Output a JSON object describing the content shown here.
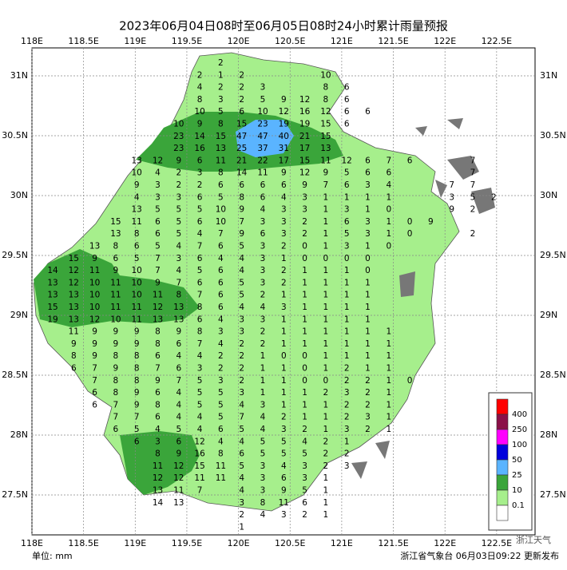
{
  "title": "2023年06月04日08时至06月05日08时24小时累计雨量预报",
  "lon_ticks": [
    {
      "value": 118,
      "label": "118E"
    },
    {
      "value": 118.5,
      "label": "118.5E"
    },
    {
      "value": 119,
      "label": "119E"
    },
    {
      "value": 119.5,
      "label": "119.5E"
    },
    {
      "value": 120,
      "label": "120E"
    },
    {
      "value": 120.5,
      "label": "120.5E"
    },
    {
      "value": 121,
      "label": "121E"
    },
    {
      "value": 121.5,
      "label": "121.5E"
    },
    {
      "value": 122,
      "label": "122E"
    },
    {
      "value": 122.5,
      "label": "122.5E"
    }
  ],
  "lat_ticks": [
    {
      "value": 31,
      "label": "31N"
    },
    {
      "value": 30.5,
      "label": "30.5N"
    },
    {
      "value": 30,
      "label": "30N"
    },
    {
      "value": 29.5,
      "label": "29.5N"
    },
    {
      "value": 29,
      "label": "29N"
    },
    {
      "value": 28.5,
      "label": "28.5N"
    },
    {
      "value": 28,
      "label": "28N"
    },
    {
      "value": 27.5,
      "label": "27.5N"
    }
  ],
  "stations": [
    [
      null,
      null,
      null,
      null,
      null,
      null,
      null,
      null,
      2
    ],
    [
      null,
      null,
      null,
      null,
      null,
      null,
      null,
      2,
      1,
      2,
      null,
      null,
      null,
      10
    ],
    [
      null,
      null,
      null,
      null,
      null,
      null,
      null,
      4,
      2,
      2,
      3,
      null,
      null,
      8,
      6
    ],
    [
      null,
      null,
      null,
      null,
      null,
      null,
      null,
      8,
      3,
      2,
      5,
      9,
      12,
      8,
      6
    ],
    [
      null,
      null,
      null,
      null,
      null,
      null,
      null,
      10,
      5,
      6,
      10,
      12,
      16,
      12,
      6,
      6
    ],
    [
      null,
      null,
      null,
      null,
      null,
      null,
      10,
      9,
      8,
      15,
      23,
      19,
      19,
      15,
      6
    ],
    [
      null,
      null,
      null,
      null,
      null,
      null,
      23,
      14,
      15,
      47,
      47,
      40,
      21,
      15
    ],
    [
      null,
      null,
      null,
      null,
      null,
      null,
      23,
      16,
      13,
      25,
      37,
      31,
      17,
      13
    ],
    [
      null,
      null,
      null,
      null,
      13,
      12,
      9,
      6,
      11,
      21,
      22,
      17,
      15,
      11,
      12,
      6,
      7,
      6,
      null,
      null,
      7
    ],
    [
      null,
      null,
      null,
      null,
      10,
      4,
      2,
      3,
      8,
      14,
      11,
      9,
      12,
      9,
      5,
      6,
      6,
      null,
      null,
      null,
      7
    ],
    [
      null,
      null,
      null,
      null,
      9,
      3,
      2,
      2,
      6,
      6,
      6,
      6,
      9,
      7,
      6,
      3,
      4,
      null,
      null,
      7,
      7
    ],
    [
      null,
      null,
      null,
      null,
      4,
      3,
      3,
      6,
      5,
      8,
      6,
      4,
      3,
      1,
      1,
      1,
      1,
      null,
      null,
      3,
      5,
      2
    ],
    [
      null,
      null,
      null,
      null,
      13,
      5,
      5,
      5,
      10,
      9,
      4,
      3,
      3,
      1,
      3,
      1,
      0,
      null,
      null,
      9,
      2
    ],
    [
      null,
      null,
      null,
      15,
      11,
      6,
      5,
      6,
      10,
      7,
      3,
      3,
      2,
      1,
      6,
      3,
      1,
      0,
      9
    ],
    [
      null,
      null,
      null,
      13,
      8,
      6,
      5,
      4,
      7,
      9,
      6,
      3,
      2,
      1,
      5,
      3,
      1,
      0,
      null,
      null,
      2
    ],
    [
      null,
      null,
      13,
      8,
      6,
      5,
      4,
      7,
      6,
      5,
      3,
      2,
      0,
      1,
      3,
      1,
      0
    ],
    [
      null,
      15,
      9,
      6,
      5,
      7,
      3,
      6,
      4,
      4,
      3,
      1,
      0,
      0,
      0,
      0
    ],
    [
      14,
      12,
      11,
      9,
      10,
      7,
      4,
      5,
      6,
      4,
      3,
      2,
      1,
      1,
      1,
      0
    ],
    [
      13,
      12,
      10,
      11,
      10,
      9,
      7,
      6,
      6,
      5,
      3,
      2,
      1,
      1,
      1,
      1
    ],
    [
      13,
      13,
      10,
      11,
      10,
      11,
      8,
      7,
      6,
      5,
      2,
      1,
      1,
      1,
      1,
      1
    ],
    [
      15,
      13,
      10,
      11,
      11,
      12,
      13,
      8,
      6,
      4,
      4,
      3,
      1,
      1,
      1,
      1
    ],
    [
      19,
      13,
      12,
      10,
      11,
      13,
      13,
      6,
      4,
      3,
      3,
      1,
      1,
      1,
      1,
      1
    ],
    [
      null,
      11,
      9,
      9,
      9,
      8,
      9,
      8,
      3,
      3,
      2,
      1,
      1,
      1,
      1,
      1,
      1
    ],
    [
      null,
      9,
      9,
      9,
      9,
      8,
      6,
      7,
      4,
      2,
      2,
      1,
      1,
      1,
      1,
      1,
      1
    ],
    [
      null,
      8,
      9,
      8,
      8,
      6,
      4,
      4,
      2,
      2,
      1,
      0,
      0,
      1,
      1,
      1,
      1
    ],
    [
      null,
      6,
      7,
      9,
      8,
      7,
      6,
      3,
      2,
      2,
      1,
      1,
      0,
      1,
      2,
      1,
      1
    ],
    [
      null,
      null,
      7,
      8,
      8,
      9,
      7,
      5,
      3,
      2,
      1,
      1,
      0,
      0,
      2,
      2,
      1,
      0
    ],
    [
      null,
      null,
      6,
      8,
      9,
      6,
      4,
      5,
      5,
      3,
      1,
      1,
      1,
      2,
      3,
      2,
      1
    ],
    [
      null,
      null,
      6,
      7,
      9,
      8,
      4,
      5,
      5,
      4,
      3,
      1,
      1,
      1,
      2,
      2,
      1
    ],
    [
      null,
      null,
      null,
      7,
      7,
      6,
      4,
      4,
      5,
      7,
      4,
      2,
      1,
      1,
      2,
      3,
      1
    ],
    [
      null,
      null,
      null,
      6,
      5,
      4,
      5,
      4,
      6,
      5,
      4,
      3,
      2,
      1,
      3,
      2,
      1
    ],
    [
      null,
      null,
      null,
      null,
      6,
      3,
      6,
      12,
      4,
      4,
      5,
      5,
      4,
      2,
      1
    ],
    [
      null,
      null,
      null,
      null,
      null,
      8,
      9,
      16,
      8,
      6,
      5,
      5,
      5,
      2,
      2
    ],
    [
      null,
      null,
      null,
      null,
      null,
      11,
      12,
      15,
      11,
      5,
      3,
      4,
      3,
      2,
      3
    ],
    [
      null,
      null,
      null,
      null,
      null,
      12,
      12,
      11,
      11,
      4,
      3,
      6,
      3,
      1
    ],
    [
      null,
      null,
      null,
      null,
      null,
      13,
      11,
      7,
      null,
      4,
      3,
      9,
      5,
      1
    ],
    [
      null,
      null,
      null,
      null,
      null,
      14,
      13,
      null,
      null,
      3,
      8,
      11,
      6,
      1
    ],
    [
      null,
      null,
      null,
      null,
      null,
      null,
      null,
      null,
      null,
      2,
      4,
      3,
      2,
      1
    ],
    [
      null,
      null,
      null,
      null,
      null,
      null,
      null,
      null,
      null,
      1
    ]
  ],
  "legend": {
    "labels": [
      400,
      250,
      100,
      50,
      25,
      10,
      0.1
    ],
    "colors": [
      "#ff0000",
      "#8b1048",
      "#ff00ff",
      "#0000dd",
      "#5ab4ff",
      "#3aa53a",
      "#a6ef8c",
      "#ffffff"
    ]
  },
  "unit": "单位: mm",
  "footer": "浙江省气象台 06月03日09:22 更新发布",
  "watermark": "浙江天气"
}
